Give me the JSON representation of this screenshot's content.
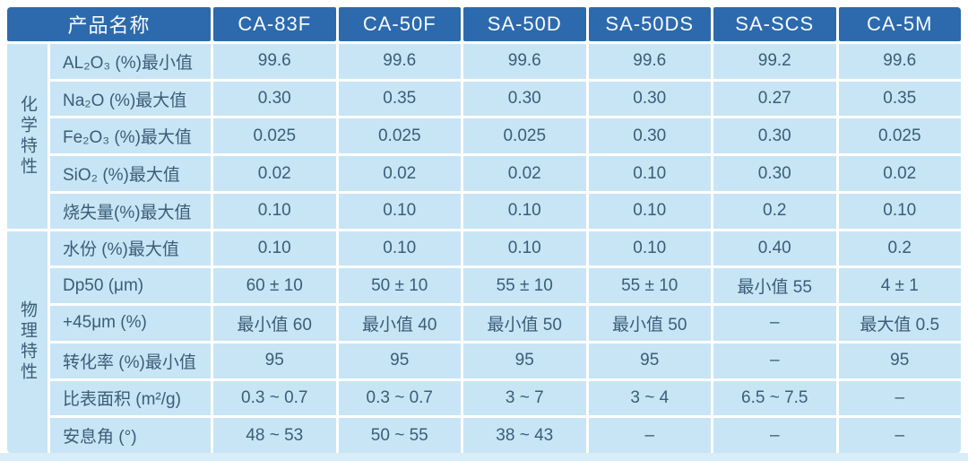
{
  "colors": {
    "header_bg": "#2d6aad",
    "header_text": "#f6fafd",
    "cell_bg": "#c8e5f6",
    "cell_text": "#3b5d77",
    "grid_line": "#ffffff",
    "page_bg": "#ffffff",
    "bottom_strip": "#d9edf9"
  },
  "table": {
    "product_name_header": "产品名称",
    "product_columns": [
      "CA-83F",
      "CA-50F",
      "SA-50D",
      "SA-50DS",
      "SA-SCS",
      "CA-5M"
    ],
    "groups": [
      {
        "label": "化学特性",
        "rows": [
          {
            "label": "AL₂O₃ (%)最小值",
            "values": [
              "99.6",
              "99.6",
              "99.6",
              "99.6",
              "99.2",
              "99.6"
            ]
          },
          {
            "label": "Na₂O (%)最大值",
            "values": [
              "0.30",
              "0.35",
              "0.30",
              "0.30",
              "0.27",
              "0.35"
            ]
          },
          {
            "label": "Fe₂O₃ (%)最大值",
            "values": [
              "0.025",
              "0.025",
              "0.025",
              "0.30",
              "0.30",
              "0.025"
            ]
          },
          {
            "label": "SiO₂ (%)最大值",
            "values": [
              "0.02",
              "0.02",
              "0.02",
              "0.10",
              "0.30",
              "0.02"
            ]
          },
          {
            "label": "烧失量(%)最大值",
            "values": [
              "0.10",
              "0.10",
              "0.10",
              "0.10",
              "0.2",
              "0.10"
            ]
          }
        ]
      },
      {
        "label": "物理特性",
        "rows": [
          {
            "label": "水份 (%)最大值",
            "values": [
              "0.10",
              "0.10",
              "0.10",
              "0.10",
              "0.40",
              "0.2"
            ]
          },
          {
            "label": "Dp50 (μm)",
            "values": [
              "60 ± 10",
              "50 ± 10",
              "55 ± 10",
              "55 ± 10",
              "最小值 55",
              "4 ± 1"
            ]
          },
          {
            "label": "+45μm (%)",
            "values": [
              "最小值 60",
              "最小值 40",
              "最小值 50",
              "最小值 50",
              "–",
              "最大值 0.5"
            ]
          },
          {
            "label": "转化率 (%)最小值",
            "values": [
              "95",
              "95",
              "95",
              "95",
              "–",
              "95"
            ]
          },
          {
            "label": "比表面积 (m²/g)",
            "values": [
              "0.3 ~ 0.7",
              "0.3 ~ 0.7",
              "3 ~ 7",
              "3 ~ 4",
              "6.5 ~ 7.5",
              "–"
            ]
          },
          {
            "label": "安息角 (°)",
            "values": [
              "48 ~ 53",
              "50 ~ 55",
              "38 ~ 43",
              "–",
              "–",
              "–"
            ]
          }
        ]
      }
    ]
  }
}
